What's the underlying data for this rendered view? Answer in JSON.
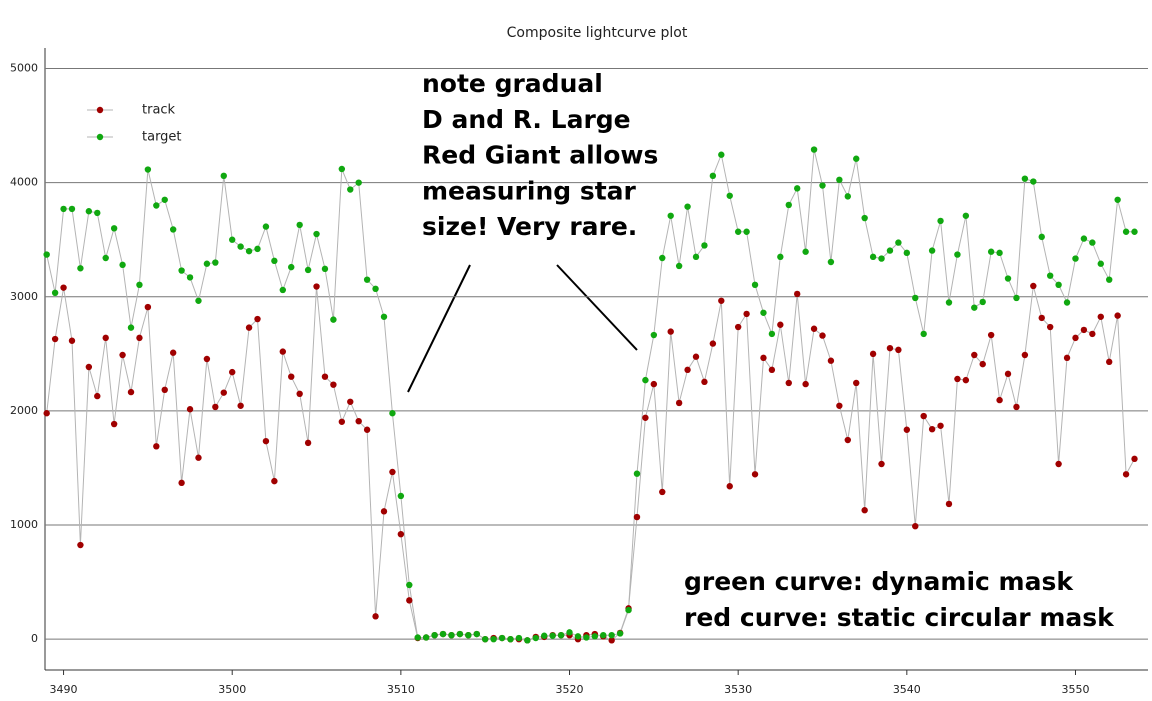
{
  "chart_data": {
    "type": "line",
    "title": "Composite lightcurve plot",
    "x": [
      3489,
      3489.5,
      3490,
      3490.5,
      3491,
      3491.5,
      3492,
      3492.5,
      3493,
      3493.5,
      3494,
      3494.5,
      3495,
      3495.5,
      3496,
      3496.5,
      3497,
      3497.5,
      3498,
      3498.5,
      3499,
      3499.5,
      3500,
      3500.5,
      3501,
      3501.5,
      3502,
      3502.5,
      3503,
      3503.5,
      3504,
      3504.5,
      3505,
      3505.5,
      3506,
      3506.5,
      3507,
      3507.5,
      3508,
      3508.5,
      3509,
      3509.5,
      3510,
      3510.5,
      3511,
      3511.5,
      3512,
      3512.5,
      3513,
      3513.5,
      3514,
      3514.5,
      3515,
      3515.5,
      3516,
      3516.5,
      3517,
      3517.5,
      3518,
      3518.5,
      3519,
      3519.5,
      3520,
      3520.5,
      3521,
      3521.5,
      3522,
      3522.5,
      3523,
      3523.5,
      3524,
      3524.5,
      3525,
      3525.5,
      3526,
      3526.5,
      3527,
      3527.5,
      3528,
      3528.5,
      3529,
      3529.5,
      3530,
      3530.5,
      3531,
      3531.5,
      3532,
      3532.5,
      3533,
      3533.5,
      3534,
      3534.5,
      3535,
      3535.5,
      3536,
      3536.5,
      3537,
      3537.5,
      3538,
      3538.5,
      3539,
      3539.5,
      3540,
      3540.5,
      3541,
      3541.5,
      3542,
      3542.5,
      3543,
      3543.5,
      3544,
      3544.5,
      3545,
      3545.5,
      3546,
      3546.5,
      3547,
      3547.5,
      3548,
      3548.5,
      3549,
      3549.5,
      3550,
      3550.5,
      3551,
      3551.5,
      3552,
      3552.5,
      3553,
      3553.5
    ],
    "series": [
      {
        "name": "track",
        "color": "#a00000",
        "values": [
          1980,
          2630,
          3080,
          2615,
          825,
          2385,
          2130,
          2640,
          1885,
          2490,
          2165,
          2640,
          2910,
          1690,
          2185,
          2510,
          1370,
          2015,
          1590,
          2455,
          2035,
          2160,
          2340,
          2045,
          2730,
          2805,
          1735,
          1385,
          2520,
          2300,
          2150,
          1720,
          3090,
          2300,
          2230,
          1905,
          2080,
          1910,
          1835,
          200,
          1120,
          1465,
          920,
          340,
          10,
          15,
          35,
          45,
          35,
          45,
          35,
          45,
          0,
          10,
          10,
          0,
          0,
          -10,
          20,
          20,
          35,
          35,
          35,
          0,
          35,
          45,
          25,
          -10,
          55,
          270,
          1070,
          1940,
          2235,
          1290,
          2695,
          2070,
          2360,
          2475,
          2255,
          2590,
          2965,
          1340,
          2735,
          2850,
          1445,
          2465,
          2360,
          2755,
          2245,
          3025,
          2235,
          2720,
          2660,
          2440,
          2045,
          1745,
          2245,
          1130,
          2500,
          1535,
          2550,
          2535,
          1835,
          990,
          1955,
          1840,
          1870,
          1185,
          2280,
          2270,
          2490,
          2410,
          2665,
          2095,
          2325,
          2035,
          2490,
          3095,
          2815,
          2735,
          1535,
          2465,
          2640,
          2710,
          2675,
          2825,
          2430,
          2835,
          1445,
          1580
        ]
      },
      {
        "name": "target",
        "color": "#10a810",
        "values": [
          3370,
          3035,
          3770,
          3770,
          3250,
          3750,
          3735,
          3340,
          3600,
          3280,
          2730,
          3105,
          4115,
          3800,
          3850,
          3590,
          3230,
          3170,
          2965,
          3290,
          3300,
          4060,
          3500,
          3440,
          3400,
          3420,
          3615,
          3315,
          3060,
          3260,
          3630,
          3235,
          3550,
          3245,
          2800,
          4120,
          3940,
          4000,
          3150,
          3070,
          2825,
          1980,
          1255,
          475,
          15,
          15,
          35,
          45,
          35,
          45,
          35,
          45,
          0,
          0,
          10,
          0,
          10,
          -10,
          10,
          30,
          30,
          35,
          60,
          25,
          15,
          25,
          35,
          35,
          50,
          255,
          1450,
          2270,
          2665,
          3340,
          3710,
          3270,
          3790,
          3350,
          3450,
          4060,
          4245,
          3885,
          3570,
          3570,
          3105,
          2860,
          2675,
          3350,
          3805,
          3950,
          3395,
          4290,
          3975,
          3305,
          4025,
          3880,
          4210,
          3690,
          3350,
          3335,
          3405,
          3475,
          3385,
          2990,
          2675,
          3405,
          3665,
          2950,
          3370,
          3710,
          2905,
          2955,
          3395,
          3385,
          3160,
          2990,
          4035,
          4010,
          3525,
          3185,
          3105,
          2950,
          3335,
          3510,
          3475,
          3290,
          3150,
          3850,
          3570,
          3570
        ]
      }
    ],
    "line_color": "#b4b4b4",
    "xlim": [
      3488.9,
      3554.3
    ],
    "xticks": [
      3490,
      3500,
      3510,
      3520,
      3530,
      3540,
      3550
    ],
    "ylim": [
      -270,
      5180
    ],
    "yticks": [
      0,
      1000,
      2000,
      3000,
      4000,
      5000
    ],
    "grid": true,
    "legend": "upper left",
    "annotations": [
      {
        "lines": [
          "note gradual",
          "D and R. Large",
          "Red Giant  allows",
          "measuring star",
          "size! Very rare."
        ]
      },
      {
        "lines": [
          "green curve: dynamic mask",
          "red curve: static circular mask"
        ]
      }
    ]
  }
}
